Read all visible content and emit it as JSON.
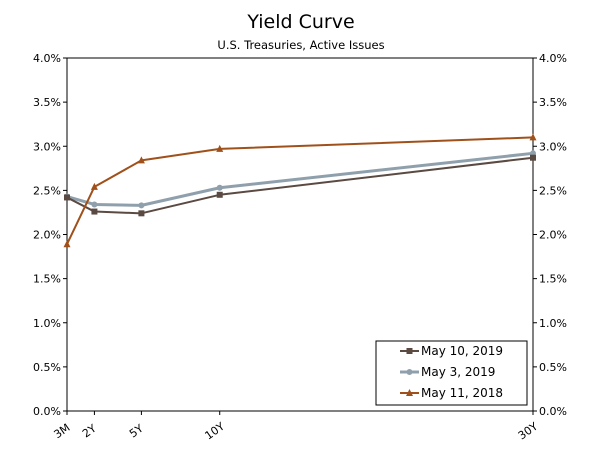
{
  "chart_data": {
    "type": "line",
    "title": "Yield Curve",
    "subtitle": "U.S. Treasuries, Active Issues",
    "xlabel": "",
    "ylabel": "",
    "x": [
      0.25,
      2,
      5,
      10,
      30
    ],
    "x_tick_labels": [
      "3M",
      "2Y",
      "5Y",
      "10Y",
      "30Y"
    ],
    "y_tick_labels": [
      "0.0%",
      "0.5%",
      "1.0%",
      "1.5%",
      "2.0%",
      "2.5%",
      "3.0%",
      "3.5%",
      "4.0%"
    ],
    "y_ticks": [
      0,
      0.5,
      1,
      1.5,
      2,
      2.5,
      3,
      3.5,
      4
    ],
    "ylim": [
      0,
      4
    ],
    "xlim": [
      0.25,
      30
    ],
    "grid": false,
    "legend_position": "bottom-right",
    "series": [
      {
        "name": "May 10, 2019",
        "values": [
          2.42,
          2.26,
          2.24,
          2.45,
          2.87
        ],
        "color": "#5b4a42",
        "marker": "square",
        "width": 2
      },
      {
        "name": "May 3, 2019",
        "values": [
          2.43,
          2.34,
          2.33,
          2.53,
          2.92
        ],
        "color": "#8fa0ac",
        "marker": "circle",
        "width": 3
      },
      {
        "name": "May 11, 2018",
        "values": [
          1.89,
          2.54,
          2.84,
          2.97,
          3.1
        ],
        "color": "#a0501a",
        "marker": "triangle",
        "width": 2
      }
    ]
  }
}
